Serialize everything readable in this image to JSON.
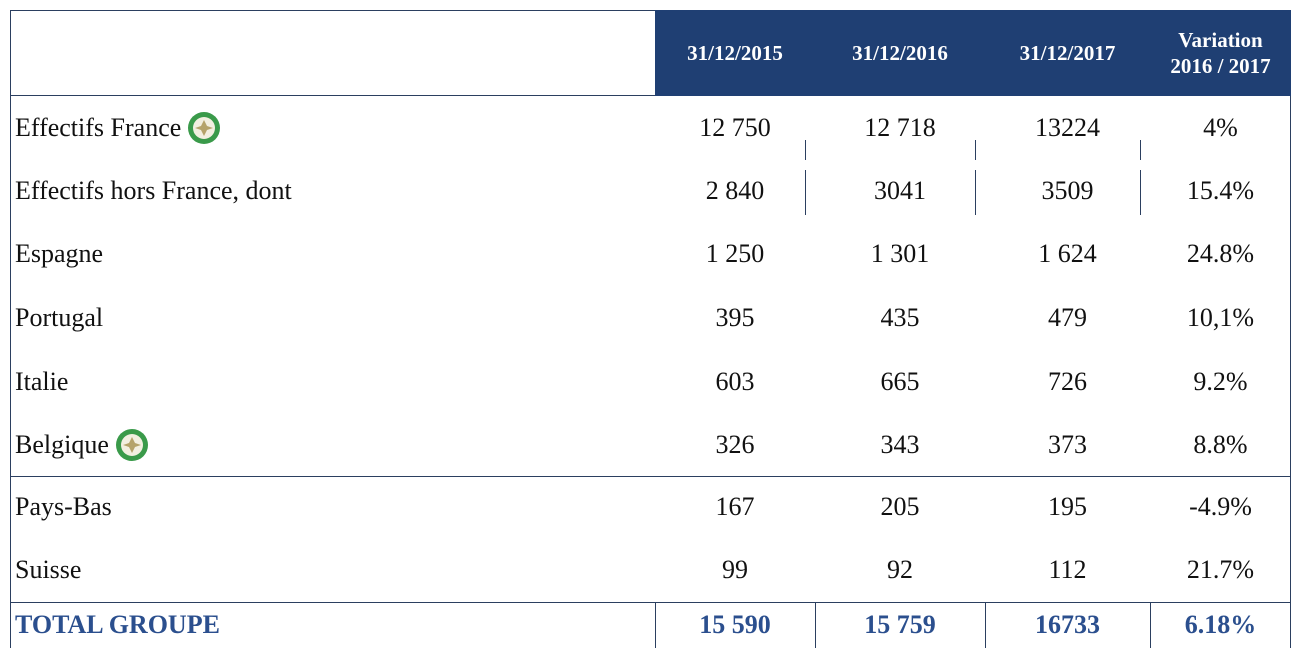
{
  "table": {
    "header": [
      "31/12/2015",
      "31/12/2016",
      "31/12/2017",
      "Variation 2016 / 2017"
    ],
    "rows": [
      [
        "Effectifs France",
        "12 750",
        "12 718",
        "13224",
        "4%"
      ],
      [
        "Effectifs hors France, dont",
        "2 840",
        "3041",
        "3509",
        "15.4%"
      ],
      [
        "Espagne",
        "1 250",
        "1 301",
        "1 624",
        "24.8%"
      ],
      [
        "Portugal",
        "395",
        "435",
        "479",
        "10,1%"
      ],
      [
        "Italie",
        "603",
        "665",
        "726",
        "9.2%"
      ],
      [
        "Belgique",
        "326",
        "343",
        "373",
        "8.8%"
      ],
      [
        "Pays-Bas",
        "167",
        "205",
        "195",
        "-4.9%"
      ],
      [
        "Suisse",
        "99",
        "92",
        "112",
        "21.7%"
      ]
    ],
    "total": [
      "TOTAL GROUPE",
      "15 590",
      "15 759",
      "16733",
      "6.18%"
    ]
  }
}
